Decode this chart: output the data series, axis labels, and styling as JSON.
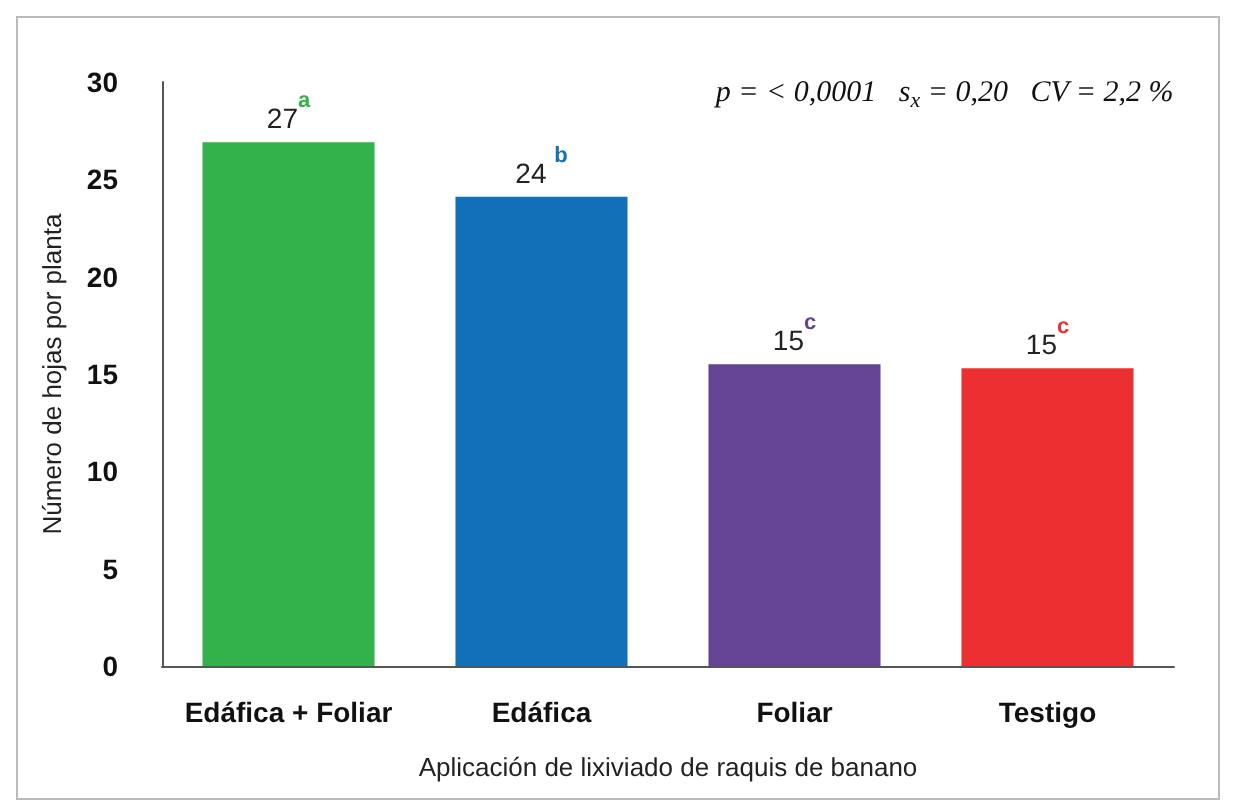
{
  "chart_data": {
    "type": "bar",
    "xlabel": "Aplicación de lixiviado de raquis de banano",
    "ylabel": "Número de hojas por planta",
    "categories": [
      "Edáfica + Foliar",
      "Edáfica",
      "Foliar",
      "Testigo"
    ],
    "values": [
      26.9,
      24.1,
      15.5,
      15.3
    ],
    "colors": [
      "#33b14a",
      "#1170b8",
      "#654496",
      "#ec3031"
    ],
    "value_labels": [
      "27$^{a}$",
      "24 $^{b}$",
      "15$^{c}$",
      "15$^{c}$"
    ],
    "annotations": [
      "p = < 0,0001   s$_{x}$ = 0,20   CV = 2,2 %"
    ],
    "ylim": [
      0,
      30
    ],
    "yticks": [
      0,
      5,
      10,
      15,
      20,
      25,
      30
    ],
    "grid": false
  }
}
